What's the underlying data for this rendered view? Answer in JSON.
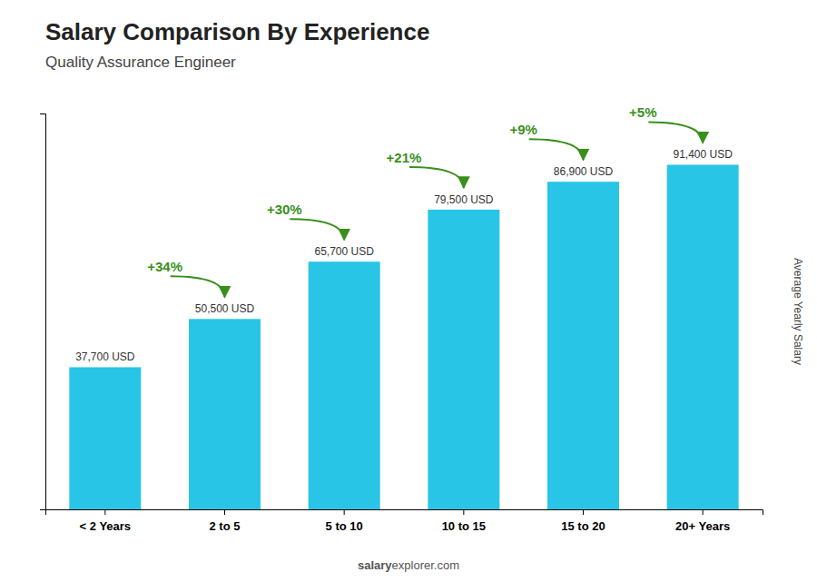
{
  "chart_data": {
    "type": "bar",
    "title": "Salary Comparison By Experience",
    "subtitle": "Quality Assurance Engineer",
    "ylabel": "Average Yearly Salary",
    "categories": [
      "< 2 Years",
      "2 to 5",
      "5 to 10",
      "10 to 15",
      "15 to 20",
      "20+ Years"
    ],
    "values": [
      37700,
      50500,
      65700,
      79500,
      86900,
      91400
    ],
    "value_labels": [
      "37,700 USD",
      "50,500 USD",
      "65,700 USD",
      "79,500 USD",
      "86,900 USD",
      "91,400 USD"
    ],
    "data_labels": true,
    "color": "#29C5E6",
    "ylim": [
      0,
      105000
    ],
    "yticks": [],
    "tick_labels": "x",
    "grid": false,
    "annotations": [
      {
        "text": "+34%",
        "from": "< 2 Years",
        "to": "2 to 5"
      },
      {
        "text": "+30%",
        "from": "2 to 5",
        "to": "5 to 10"
      },
      {
        "text": "+21%",
        "from": "5 to 10",
        "to": "10 to 15"
      },
      {
        "text": "+9%",
        "from": "10 to 15",
        "to": "15 to 20"
      },
      {
        "text": "+5%",
        "from": "15 to 20",
        "to": "20+ Years"
      }
    ],
    "watermark": [
      "salary",
      "explorer.com"
    ]
  }
}
